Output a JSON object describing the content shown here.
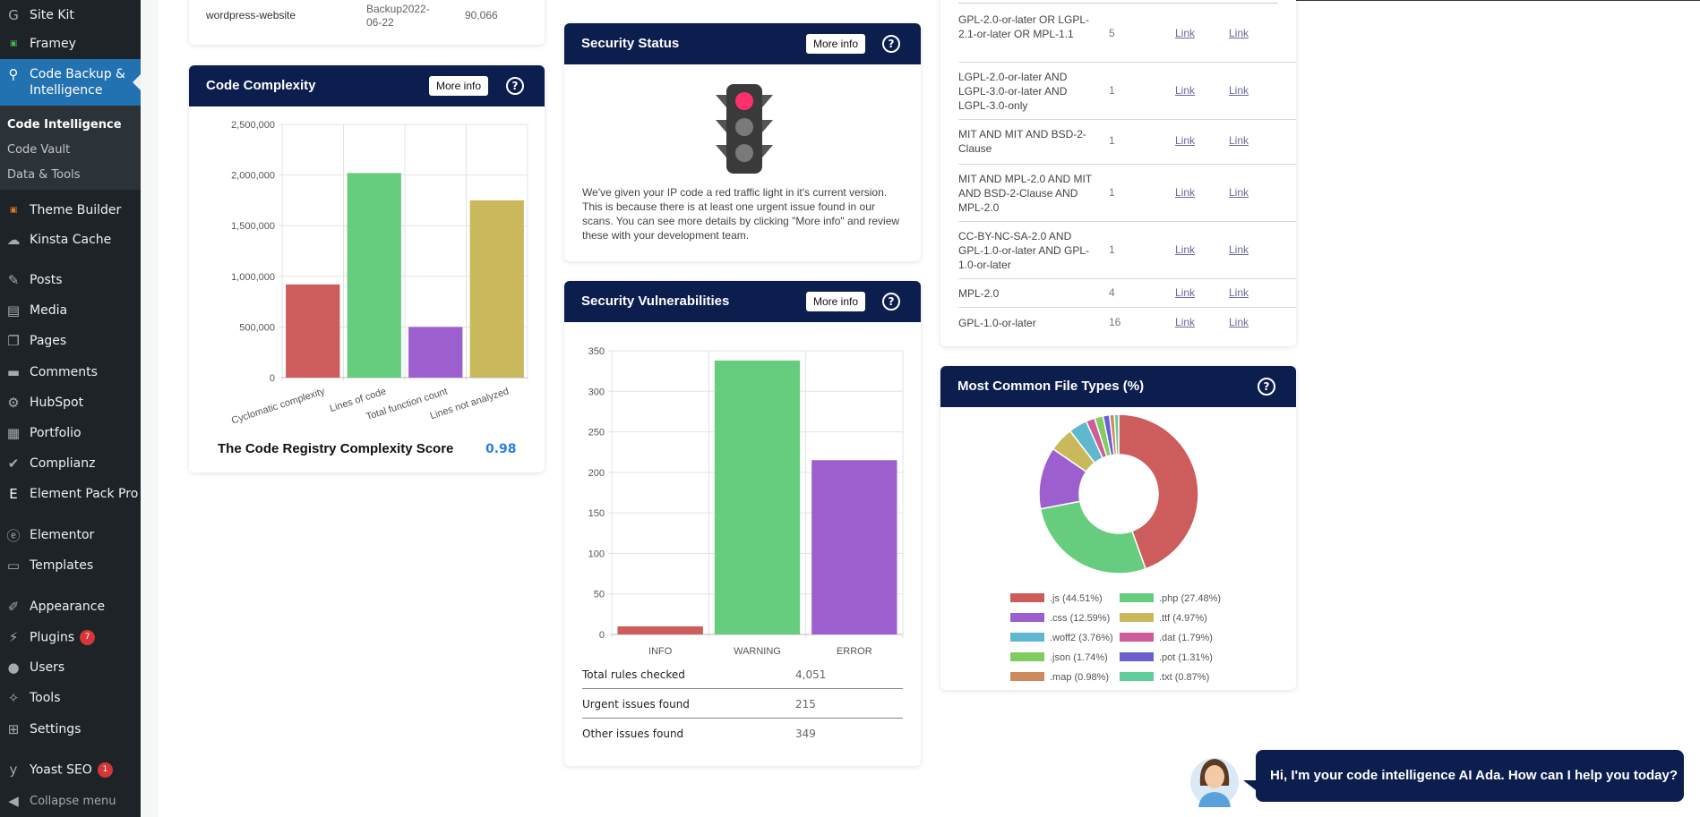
{
  "sidebar": {
    "items": [
      {
        "label": "Site Kit",
        "icon": "site-kit-icon"
      },
      {
        "label": "Framey",
        "icon": "framey-icon"
      },
      {
        "label": "Code Backup & Intelligence",
        "icon": "search-icon"
      },
      {
        "label": "Theme Builder",
        "icon": "theme-builder-icon"
      },
      {
        "label": "Kinsta Cache",
        "icon": "cloud-icon"
      },
      {
        "label": "Posts",
        "icon": "pin-icon"
      },
      {
        "label": "Media",
        "icon": "media-icon"
      },
      {
        "label": "Pages",
        "icon": "pages-icon"
      },
      {
        "label": "Comments",
        "icon": "comment-icon"
      },
      {
        "label": "HubSpot",
        "icon": "hubspot-icon"
      },
      {
        "label": "Portfolio",
        "icon": "portfolio-icon"
      },
      {
        "label": "Complianz",
        "icon": "check-icon"
      },
      {
        "label": "Element Pack Pro",
        "icon": "element-pack-icon"
      },
      {
        "label": "Elementor",
        "icon": "elementor-icon"
      },
      {
        "label": "Templates",
        "icon": "folder-icon"
      },
      {
        "label": "Appearance",
        "icon": "brush-icon"
      },
      {
        "label": "Plugins",
        "icon": "plugin-icon",
        "badge": "7"
      },
      {
        "label": "Users",
        "icon": "user-icon"
      },
      {
        "label": "Tools",
        "icon": "wrench-icon"
      },
      {
        "label": "Settings",
        "icon": "settings-icon"
      },
      {
        "label": "Yoast SEO",
        "icon": "yoast-icon",
        "badge": "1"
      },
      {
        "label": "Collapse menu",
        "icon": "collapse-icon"
      }
    ],
    "submenu": [
      "Code Intelligence",
      "Code Vault",
      "Data & Tools"
    ]
  },
  "top_row": {
    "name": "wordpress-website",
    "backup": "Backup2022-06-22",
    "size": "90,066"
  },
  "complexity": {
    "title": "Code Complexity",
    "more": "More info",
    "help": "?",
    "score_label": "The Code Registry Complexity Score",
    "score": "0.98"
  },
  "security_status": {
    "title": "Security Status",
    "more": "More info",
    "help": "?",
    "text": "We've given your IP code a red traffic light in it's current version. This is because there is at least one urgent issue found in our scans. You can see more details by clicking \"More info\" and review these with your development team."
  },
  "vulnerabilities": {
    "title": "Security Vulnerabilities",
    "more": "More info",
    "help": "?",
    "stats": [
      {
        "label": "Total rules checked",
        "value": "4,051"
      },
      {
        "label": "Urgent issues found",
        "value": "215"
      },
      {
        "label": "Other issues found",
        "value": "349"
      }
    ]
  },
  "licenses": {
    "rows": [
      {
        "name": "GPL-2.0-or-later OR LGPL-2.1-or-later OR MPL-1.1",
        "count": "5",
        "link1": "Link",
        "link2": "Link"
      },
      {
        "name": "LGPL-2.0-or-later AND LGPL-3.0-or-later AND LGPL-3.0-only",
        "count": "1",
        "link1": "Link",
        "link2": "Link"
      },
      {
        "name": "MIT AND MIT AND BSD-2-Clause",
        "count": "1",
        "link1": "Link",
        "link2": "Link"
      },
      {
        "name": "MIT AND MPL-2.0 AND MIT AND BSD-2-Clause AND MPL-2.0",
        "count": "1",
        "link1": "Link",
        "link2": "Link"
      },
      {
        "name": "CC-BY-NC-SA-2.0 AND GPL-1.0-or-later AND GPL-1.0-or-later",
        "count": "1",
        "link1": "Link",
        "link2": "Link"
      },
      {
        "name": "MPL-2.0",
        "count": "4",
        "link1": "Link",
        "link2": "Link"
      },
      {
        "name": "GPL-1.0-or-later",
        "count": "16",
        "link1": "Link",
        "link2": "Link"
      }
    ]
  },
  "file_types": {
    "title": "Most Common File Types (%)",
    "help": "?"
  },
  "ada": {
    "message": "Hi, I'm your code intelligence AI Ada. How can I help you today?"
  },
  "chart_data": [
    {
      "type": "bar",
      "title": "Code Complexity",
      "categories": [
        "Cyclomatic complexity",
        "Lines of code",
        "Total function count",
        "Lines not analyzed"
      ],
      "values": [
        920000,
        2020000,
        500000,
        1750000
      ],
      "colors": [
        "#cd5c5c",
        "#66cd7e",
        "#9d5fd0",
        "#c9b95c"
      ],
      "ylim": [
        0,
        2500000
      ],
      "yticks": [
        "0",
        "500,000",
        "1,000,000",
        "1,500,000",
        "2,000,000",
        "2,500,000"
      ]
    },
    {
      "type": "bar",
      "title": "Security Vulnerabilities",
      "categories": [
        "INFO",
        "WARNING",
        "ERROR"
      ],
      "values": [
        10,
        338,
        215
      ],
      "colors": [
        "#cd5c5c",
        "#66cd7e",
        "#9d5fd0"
      ],
      "ylim": [
        0,
        350
      ],
      "yticks": [
        "0",
        "50",
        "100",
        "150",
        "200",
        "250",
        "300",
        "350"
      ]
    },
    {
      "type": "pie",
      "title": "Most Common File Types (%)",
      "labels": [
        ".js",
        ".php",
        ".css",
        ".ttf",
        ".woff2",
        ".dat",
        ".json",
        ".pot",
        ".map",
        ".txt"
      ],
      "values": [
        44.51,
        27.48,
        12.59,
        4.97,
        3.76,
        1.79,
        1.74,
        1.31,
        0.98,
        0.87
      ],
      "legend": [
        ".js (44.51%)",
        ".php (27.48%)",
        ".css (12.59%)",
        ".ttf (4.97%)",
        ".woff2 (3.76%)",
        ".dat (1.79%)",
        ".json (1.74%)",
        ".pot (1.31%)",
        ".map (0.98%)",
        ".txt (0.87%)"
      ],
      "colors": [
        "#cd5c5c",
        "#66cd7e",
        "#9d5fd0",
        "#c9b95c",
        "#5fb8cd",
        "#cd5c9a",
        "#7fcd5c",
        "#6a5fd0",
        "#cd8a5c",
        "#5fcd9a"
      ]
    }
  ]
}
